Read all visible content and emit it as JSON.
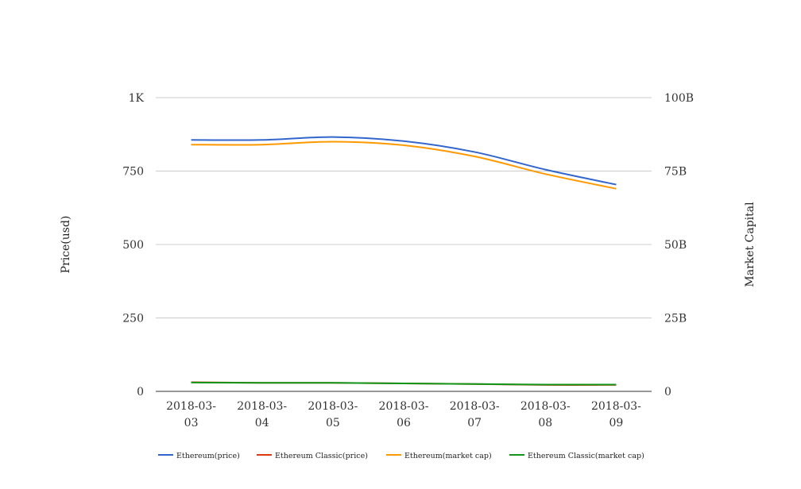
{
  "chart_data": {
    "type": "line",
    "title": "",
    "x": [
      "2018-03-03",
      "2018-03-04",
      "2018-03-05",
      "2018-03-06",
      "2018-03-07",
      "2018-03-08",
      "2018-03-09"
    ],
    "y_left": {
      "label": "Price(usd)",
      "range": [
        0,
        1000
      ],
      "ticks": [
        {
          "value": 0,
          "label": "0"
        },
        {
          "value": 250,
          "label": "250"
        },
        {
          "value": 500,
          "label": "500"
        },
        {
          "value": 750,
          "label": "750"
        },
        {
          "value": 1000,
          "label": "1K"
        }
      ]
    },
    "y_right": {
      "label": "Market Capital",
      "range": [
        0,
        100000000000
      ],
      "ticks": [
        {
          "value": 0,
          "label": "0"
        },
        {
          "value": 25000000000,
          "label": "25B"
        },
        {
          "value": 50000000000,
          "label": "50B"
        },
        {
          "value": 75000000000,
          "label": "75B"
        },
        {
          "value": 100000000000,
          "label": "100B"
        }
      ]
    },
    "grid": true,
    "legend_position": "bottom",
    "series": [
      {
        "name": "Ethereum(price)",
        "axis": "left",
        "color": "#3366cc",
        "values": [
          856,
          856,
          866,
          852,
          815,
          755,
          704
        ]
      },
      {
        "name": "Ethereum Classic(price)",
        "axis": "left",
        "color": "#dc3912",
        "values": [
          31,
          29,
          29,
          27,
          25,
          22,
          22
        ]
      },
      {
        "name": "Ethereum(market cap)",
        "axis": "right",
        "color": "#ff9900",
        "values": [
          84000000000,
          84000000000,
          85000000000,
          83800000000,
          80000000000,
          74000000000,
          69000000000
        ]
      },
      {
        "name": "Ethereum Classic(market cap)",
        "axis": "right",
        "color": "#109618",
        "values": [
          3000000000,
          2900000000,
          2900000000,
          2700000000,
          2500000000,
          2300000000,
          2300000000
        ]
      }
    ]
  }
}
